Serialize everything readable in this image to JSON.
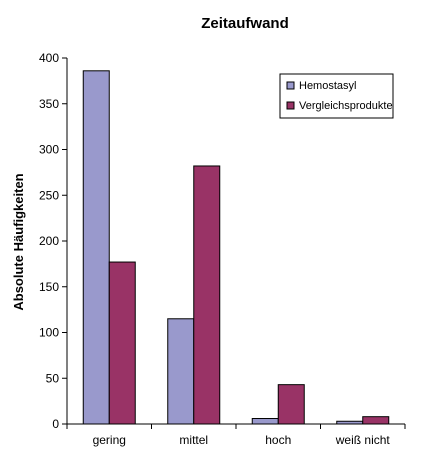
{
  "chart_data": {
    "type": "bar",
    "title": "Zeitaufwand",
    "xlabel": "",
    "ylabel": "Absolute Häufigkeiten",
    "categories": [
      "gering",
      "mittel",
      "hoch",
      "weiß nicht"
    ],
    "series": [
      {
        "name": "Hemostasyl",
        "color": "#9999cc",
        "values": [
          386,
          115,
          6,
          3
        ]
      },
      {
        "name": "Vergleichsprodukte",
        "color": "#993366",
        "values": [
          177,
          282,
          43,
          8
        ]
      }
    ],
    "ylim": [
      0,
      400
    ],
    "yticks": [
      0,
      50,
      100,
      150,
      200,
      250,
      300,
      350,
      400
    ],
    "grid": false,
    "legend_position": "top-right"
  }
}
